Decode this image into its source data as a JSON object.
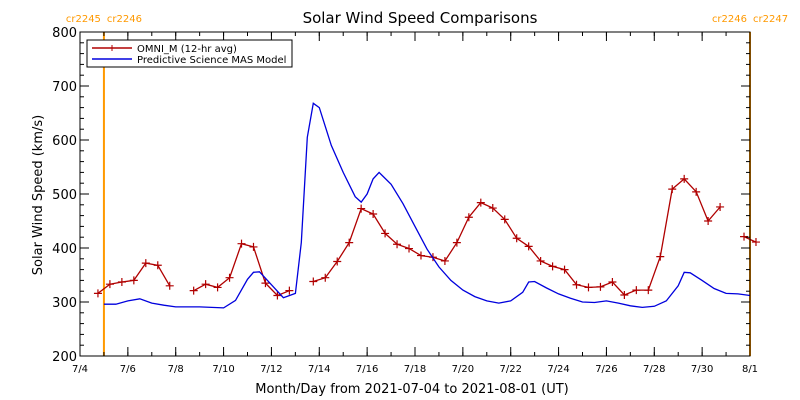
{
  "chart_data": {
    "type": "line",
    "title": "Solar Wind Speed Comparisons",
    "xlabel": "Month/Day from 2021-07-04 to 2021-08-01 (UT)",
    "ylabel": "Solar Wind Speed (km/s)",
    "xlim": [
      "2021-07-04",
      "2021-08-01"
    ],
    "ylim": [
      200,
      800
    ],
    "y_ticks": [
      200,
      300,
      400,
      500,
      600,
      700,
      800
    ],
    "x_ticks": [
      {
        "date": "2021-07-04",
        "label": "7/4"
      },
      {
        "date": "2021-07-06",
        "label": "7/6"
      },
      {
        "date": "2021-07-08",
        "label": "7/8"
      },
      {
        "date": "2021-07-10",
        "label": "7/10"
      },
      {
        "date": "2021-07-12",
        "label": "7/12"
      },
      {
        "date": "2021-07-14",
        "label": "7/14"
      },
      {
        "date": "2021-07-16",
        "label": "7/16"
      },
      {
        "date": "2021-07-18",
        "label": "7/18"
      },
      {
        "date": "2021-07-20",
        "label": "7/20"
      },
      {
        "date": "2021-07-22",
        "label": "7/22"
      },
      {
        "date": "2021-07-24",
        "label": "7/24"
      },
      {
        "date": "2021-07-26",
        "label": "7/26"
      },
      {
        "date": "2021-07-28",
        "label": "7/28"
      },
      {
        "date": "2021-07-30",
        "label": "7/30"
      },
      {
        "date": "2021-08-01",
        "label": "8/1"
      }
    ],
    "grid": false,
    "legend_position": "top-left",
    "vlines": [
      {
        "date": "2021-07-05",
        "label_left": "cr2245",
        "label_right": "cr2246",
        "color": "#ff9900"
      },
      {
        "date": "2021-08-01",
        "label_left": "cr2246",
        "label_right": "cr2247",
        "color": "#ff9900"
      }
    ],
    "series": [
      {
        "name": "OMNI_M (12-hr avg)",
        "color": "#b00000",
        "marker": "plus",
        "points": [
          [
            "2021-07-04 18:00",
            316
          ],
          [
            "2021-07-05 06:00",
            333
          ],
          [
            "2021-07-05 18:00",
            337
          ],
          [
            "2021-07-06 06:00",
            340
          ],
          [
            "2021-07-06 18:00",
            372
          ],
          [
            "2021-07-07 06:00",
            368
          ],
          [
            "2021-07-07 18:00",
            330
          ],
          null,
          [
            "2021-07-08 18:00",
            321
          ],
          [
            "2021-07-09 06:00",
            333
          ],
          [
            "2021-07-09 18:00",
            327
          ],
          [
            "2021-07-10 06:00",
            345
          ],
          [
            "2021-07-10 18:00",
            408
          ],
          [
            "2021-07-11 06:00",
            402
          ],
          [
            "2021-07-11 18:00",
            335
          ],
          [
            "2021-07-12 06:00",
            312
          ],
          [
            "2021-07-12 18:00",
            321
          ],
          null,
          [
            "2021-07-13 18:00",
            338
          ],
          [
            "2021-07-14 06:00",
            345
          ],
          [
            "2021-07-14 18:00",
            375
          ],
          [
            "2021-07-15 06:00",
            410
          ],
          [
            "2021-07-15 18:00",
            473
          ],
          [
            "2021-07-16 06:00",
            463
          ],
          [
            "2021-07-16 18:00",
            427
          ],
          [
            "2021-07-17 06:00",
            407
          ],
          [
            "2021-07-17 18:00",
            399
          ],
          [
            "2021-07-18 06:00",
            386
          ],
          [
            "2021-07-18 18:00",
            383
          ],
          [
            "2021-07-19 06:00",
            376
          ],
          [
            "2021-07-19 18:00",
            410
          ],
          [
            "2021-07-20 06:00",
            457
          ],
          [
            "2021-07-20 18:00",
            484
          ],
          [
            "2021-07-21 06:00",
            474
          ],
          [
            "2021-07-21 18:00",
            453
          ],
          [
            "2021-07-22 06:00",
            418
          ],
          [
            "2021-07-22 18:00",
            403
          ],
          [
            "2021-07-23 06:00",
            376
          ],
          [
            "2021-07-23 18:00",
            366
          ],
          [
            "2021-07-24 06:00",
            360
          ],
          [
            "2021-07-24 18:00",
            332
          ],
          [
            "2021-07-25 06:00",
            327
          ],
          [
            "2021-07-25 18:00",
            328
          ],
          [
            "2021-07-26 06:00",
            337
          ],
          [
            "2021-07-26 18:00",
            313
          ],
          [
            "2021-07-27 06:00",
            322
          ],
          [
            "2021-07-27 18:00",
            322
          ],
          [
            "2021-07-28 06:00",
            384
          ],
          [
            "2021-07-28 18:00",
            509
          ],
          [
            "2021-07-29 06:00",
            528
          ],
          [
            "2021-07-29 18:00",
            504
          ],
          [
            "2021-07-30 06:00",
            450
          ],
          [
            "2021-07-30 18:00",
            476
          ],
          null,
          [
            "2021-07-31 18:00",
            421
          ],
          [
            "2021-08-01 06:00",
            411
          ]
        ]
      },
      {
        "name": "Predictive Science MAS Model",
        "color": "#0000dd",
        "marker": "none",
        "points": [
          [
            "2021-07-05 00:00",
            296
          ],
          [
            "2021-07-05 12:00",
            296
          ],
          [
            "2021-07-06 00:00",
            302
          ],
          [
            "2021-07-06 12:00",
            306
          ],
          [
            "2021-07-07 00:00",
            298
          ],
          [
            "2021-07-07 12:00",
            294
          ],
          [
            "2021-07-08 00:00",
            291
          ],
          [
            "2021-07-08 12:00",
            291
          ],
          [
            "2021-07-09 00:00",
            291
          ],
          [
            "2021-07-09 12:00",
            290
          ],
          [
            "2021-07-10 00:00",
            289
          ],
          [
            "2021-07-10 12:00",
            303
          ],
          [
            "2021-07-11 00:00",
            342
          ],
          [
            "2021-07-11 06:00",
            355
          ],
          [
            "2021-07-11 12:00",
            356
          ],
          [
            "2021-07-12 00:00",
            332
          ],
          [
            "2021-07-12 12:00",
            308
          ],
          [
            "2021-07-13 00:00",
            316
          ],
          [
            "2021-07-13 06:00",
            410
          ],
          [
            "2021-07-13 12:00",
            605
          ],
          [
            "2021-07-13 18:00",
            668
          ],
          [
            "2021-07-14 00:00",
            660
          ],
          [
            "2021-07-14 12:00",
            590
          ],
          [
            "2021-07-15 00:00",
            540
          ],
          [
            "2021-07-15 12:00",
            495
          ],
          [
            "2021-07-15 18:00",
            485
          ],
          [
            "2021-07-16 00:00",
            500
          ],
          [
            "2021-07-16 06:00",
            528
          ],
          [
            "2021-07-16 12:00",
            540
          ],
          [
            "2021-07-17 00:00",
            518
          ],
          [
            "2021-07-17 12:00",
            482
          ],
          [
            "2021-07-18 00:00",
            440
          ],
          [
            "2021-07-18 12:00",
            398
          ],
          [
            "2021-07-19 00:00",
            365
          ],
          [
            "2021-07-19 12:00",
            340
          ],
          [
            "2021-07-20 00:00",
            322
          ],
          [
            "2021-07-20 12:00",
            310
          ],
          [
            "2021-07-21 00:00",
            302
          ],
          [
            "2021-07-21 12:00",
            298
          ],
          [
            "2021-07-22 00:00",
            302
          ],
          [
            "2021-07-22 12:00",
            318
          ],
          [
            "2021-07-22 18:00",
            337
          ],
          [
            "2021-07-23 00:00",
            338
          ],
          [
            "2021-07-23 12:00",
            326
          ],
          [
            "2021-07-24 00:00",
            315
          ],
          [
            "2021-07-24 12:00",
            307
          ],
          [
            "2021-07-25 00:00",
            300
          ],
          [
            "2021-07-25 12:00",
            299
          ],
          [
            "2021-07-26 00:00",
            302
          ],
          [
            "2021-07-26 12:00",
            298
          ],
          [
            "2021-07-27 00:00",
            293
          ],
          [
            "2021-07-27 12:00",
            290
          ],
          [
            "2021-07-28 00:00",
            292
          ],
          [
            "2021-07-28 12:00",
            302
          ],
          [
            "2021-07-29 00:00",
            330
          ],
          [
            "2021-07-29 06:00",
            355
          ],
          [
            "2021-07-29 12:00",
            354
          ],
          [
            "2021-07-30 00:00",
            340
          ],
          [
            "2021-07-30 12:00",
            325
          ],
          [
            "2021-07-31 00:00",
            316
          ],
          [
            "2021-07-31 12:00",
            315
          ],
          [
            "2021-08-01 00:00",
            312
          ]
        ]
      }
    ]
  }
}
